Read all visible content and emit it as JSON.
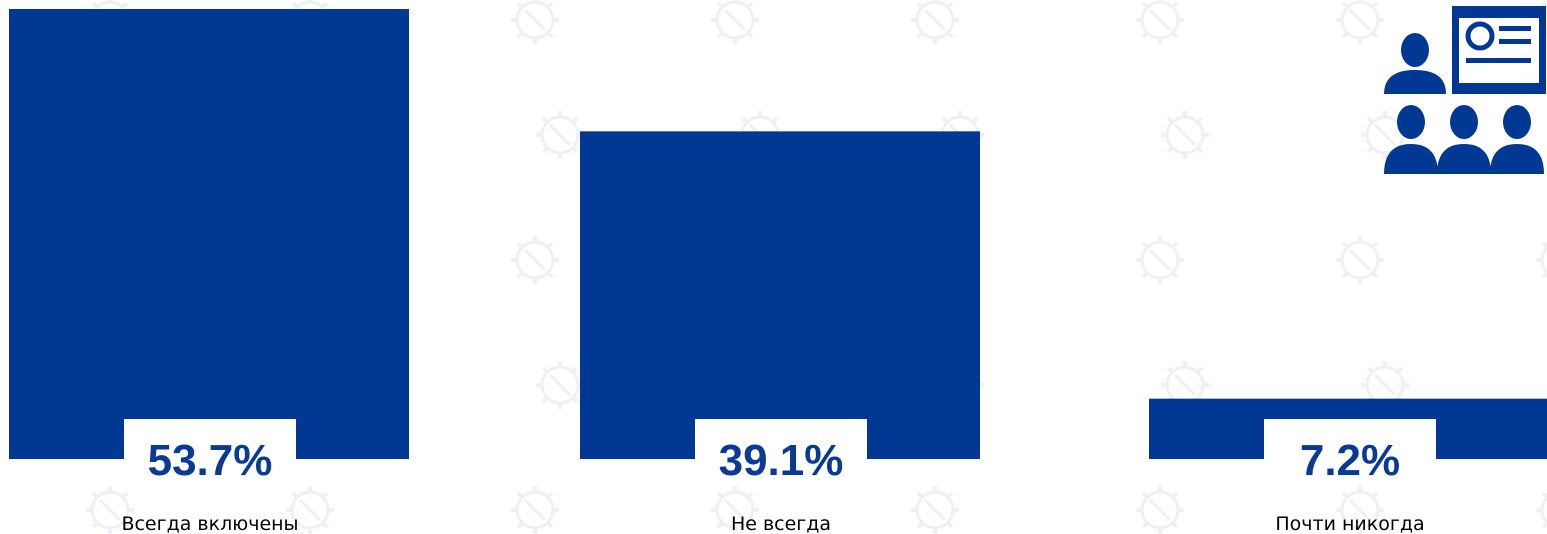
{
  "chart_data": {
    "type": "bar",
    "categories": [
      "Всегда включены",
      "Не всегда",
      "Почти никогда"
    ],
    "values": [
      53.7,
      39.1,
      7.2
    ],
    "value_labels": [
      "53.7%",
      "39.1%",
      "7.2%"
    ],
    "ylim": [
      0,
      53.7
    ],
    "grid": false,
    "legend": "none"
  },
  "colors": {
    "bar": "#003893",
    "label_text": "#0a3a94",
    "watermark": "#eef0f8"
  },
  "icons": {
    "corner_icon": "audience-presentation-icon",
    "watermark_icon": "gear-icon"
  }
}
